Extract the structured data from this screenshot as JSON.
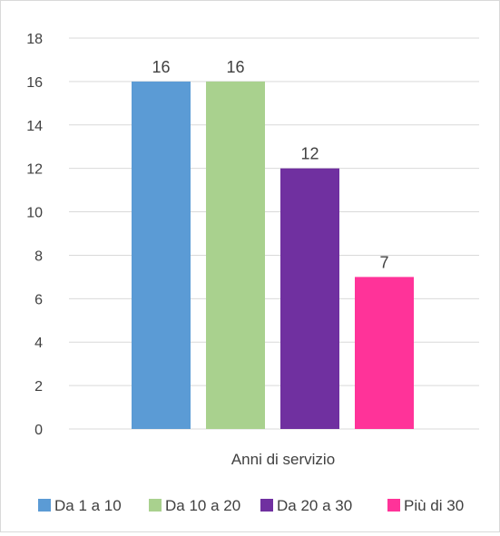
{
  "chart_data": {
    "type": "bar",
    "xlabel": "Anni di servizio",
    "categories": [
      "Anni di servizio"
    ],
    "series": [
      {
        "name": "Da 1 a 10",
        "values": [
          16
        ],
        "color": "#5b9bd5"
      },
      {
        "name": "Da 10 a 20",
        "values": [
          16
        ],
        "color": "#a9d18e"
      },
      {
        "name": "Da 20 a 30",
        "values": [
          12
        ],
        "color": "#7030a0"
      },
      {
        "name": "Più di 30",
        "values": [
          7
        ],
        "color": "#ff3399"
      }
    ],
    "ylim": [
      0,
      18
    ],
    "yticks": [
      "0",
      "2",
      "4",
      "6",
      "8",
      "10",
      "12",
      "14",
      "16",
      "18"
    ],
    "grid": true,
    "legend_position": "bottom",
    "data_labels": true
  }
}
